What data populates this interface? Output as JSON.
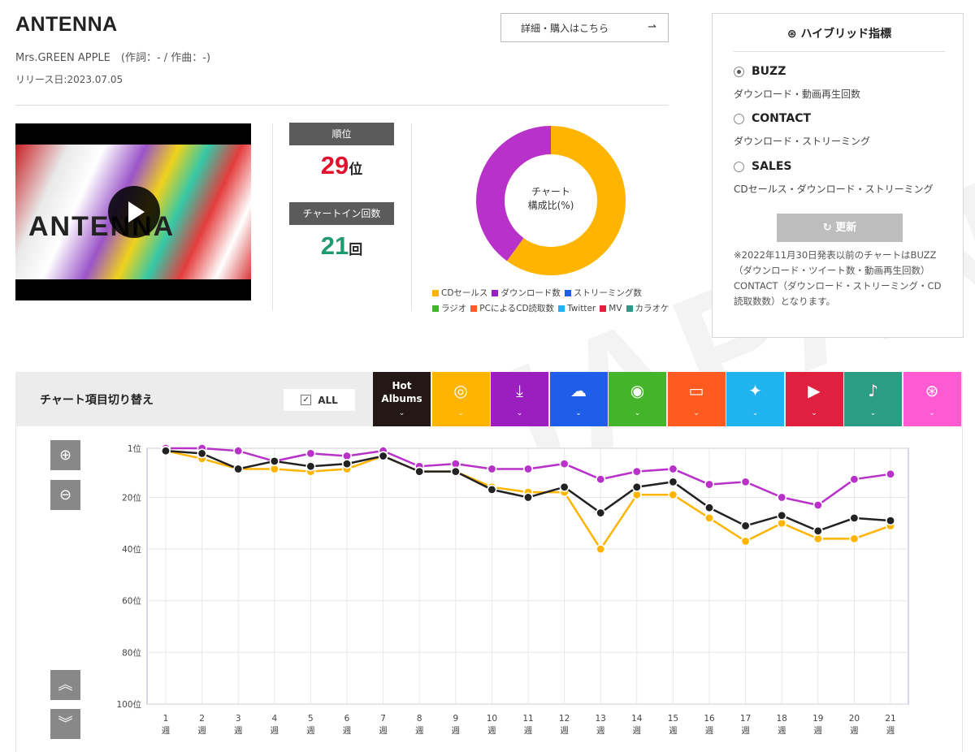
{
  "song": {
    "title": "ANTENNA",
    "artist_line": "Mrs.GREEN APPLE　(作詞：- / 作曲：-)",
    "release": "リリース日:2023.07.05",
    "detail_button": "詳細・購入はこちら",
    "video_art_text": "ANTENNA"
  },
  "stats": {
    "rank_label": "順位",
    "rank_value": "29",
    "rank_unit": "位",
    "count_label": "チャートイン回数",
    "count_value": "21",
    "count_unit": "回"
  },
  "composition": {
    "center_line1": "チャート",
    "center_line2": "構成比(%)",
    "slices": [
      {
        "label": "CDセールス",
        "value": 60,
        "color": "#ffb400"
      },
      {
        "label": "ダウンロード数",
        "value": 40,
        "color": "#b832c9"
      }
    ],
    "legend": [
      {
        "label": "CDセールス",
        "color": "#ffb400"
      },
      {
        "label": "ダウンロード数",
        "color": "#9b1fbf"
      },
      {
        "label": "ストリーミング数",
        "color": "#1f5ee8"
      },
      {
        "label": "ラジオ",
        "color": "#44b52a"
      },
      {
        "label": "PCによるCD読取数",
        "color": "#ff5a1f"
      },
      {
        "label": "Twitter",
        "color": "#1fb4f0"
      },
      {
        "label": "MV",
        "color": "#e0203f"
      },
      {
        "label": "カラオケ",
        "color": "#2a9d84"
      }
    ]
  },
  "hybrid": {
    "title": "ハイブリッド指標",
    "options": [
      {
        "label": "BUZZ",
        "desc": "ダウンロード・動画再生回数",
        "selected": true
      },
      {
        "label": "CONTACT",
        "desc": "ダウンロード・ストリーミング",
        "selected": false
      },
      {
        "label": "SALES",
        "desc": "CDセールス・ダウンロード・ストリーミング",
        "selected": false
      }
    ],
    "update_button": "更新",
    "note": "※2022年11月30日発表以前のチャートはBUZZ（ダウンロード・ツイート数・動画再生回数）CONTACT（ダウンロード・ストリーミング・CD読取数数）となります。"
  },
  "chart_controls": {
    "title": "チャート項目切り替え",
    "all_label": "ALL",
    "tabs": [
      {
        "name": "hot-albums",
        "label": "Hot Albums",
        "color": "#231815",
        "icon": "text"
      },
      {
        "name": "cd-sales",
        "label": "",
        "color": "#ffb400",
        "icon": "disc-icon"
      },
      {
        "name": "download",
        "label": "",
        "color": "#9b1fbf",
        "icon": "download-icon"
      },
      {
        "name": "streaming",
        "label": "",
        "color": "#1f5ee8",
        "icon": "cloud-music-icon"
      },
      {
        "name": "radio",
        "label": "",
        "color": "#44b52a",
        "icon": "radio-icon"
      },
      {
        "name": "pc-cd-read",
        "label": "",
        "color": "#ff5a1f",
        "icon": "pc-disc-icon"
      },
      {
        "name": "twitter",
        "label": "",
        "color": "#1fb4f0",
        "icon": "twitter-icon"
      },
      {
        "name": "mv",
        "label": "",
        "color": "#e0203f",
        "icon": "youtube-icon"
      },
      {
        "name": "karaoke",
        "label": "",
        "color": "#2a9d84",
        "icon": "mic-icon"
      },
      {
        "name": "hybrid",
        "label": "",
        "color": "#ff5ad2",
        "icon": "hybrid-icon"
      }
    ]
  },
  "chart_data": {
    "type": "line",
    "y_inverted": true,
    "ylim": [
      1,
      100
    ],
    "y_ticks": [
      {
        "value": 1,
        "label": "1位"
      },
      {
        "value": 20,
        "label": "20位"
      },
      {
        "value": 40,
        "label": "40位"
      },
      {
        "value": 60,
        "label": "60位"
      },
      {
        "value": 80,
        "label": "80位"
      },
      {
        "value": 100,
        "label": "100位"
      }
    ],
    "x": [
      1,
      2,
      3,
      4,
      5,
      6,
      7,
      8,
      9,
      10,
      11,
      12,
      13,
      14,
      15,
      16,
      17,
      18,
      19,
      20,
      21
    ],
    "x_tick_unit": "週",
    "grid": true,
    "series": [
      {
        "color": "#b832c9",
        "values": [
          1,
          1,
          2,
          6,
          3,
          4,
          2,
          8,
          7,
          9,
          9,
          7,
          13,
          10,
          9,
          15,
          14,
          20,
          23,
          13,
          11
        ]
      },
      {
        "color": "#ffb400",
        "values": [
          2,
          5,
          9,
          9,
          10,
          9,
          4,
          10,
          10,
          16,
          18,
          18,
          40,
          19,
          19,
          28,
          37,
          30,
          36,
          36,
          31
        ]
      },
      {
        "color": "#222222",
        "values": [
          2,
          3,
          9,
          6,
          8,
          7,
          4,
          10,
          10,
          17,
          20,
          16,
          26,
          16,
          14,
          24,
          31,
          27,
          33,
          28,
          29
        ]
      }
    ]
  }
}
